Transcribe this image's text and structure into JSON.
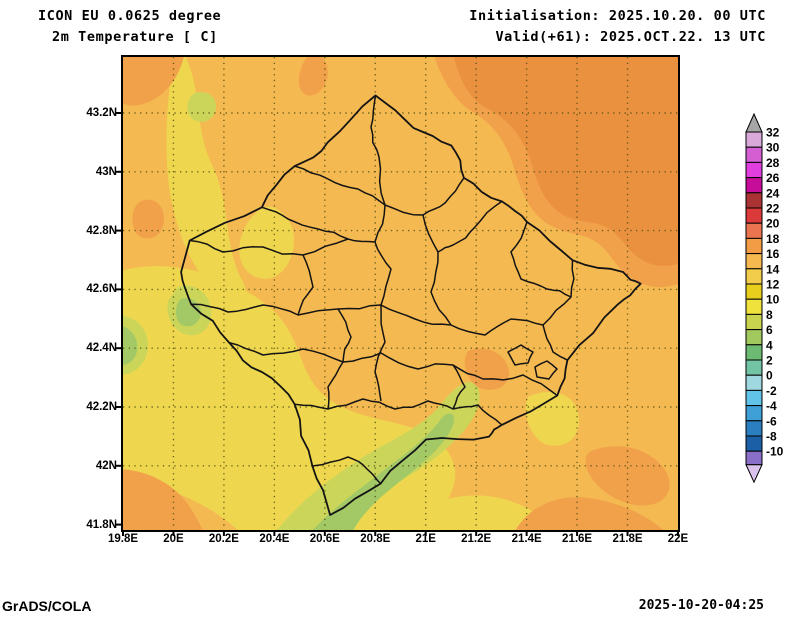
{
  "header": {
    "model_line": "ICON EU 0.0625 degree",
    "param_line": "2m Temperature [ C]",
    "init_line": "Initialisation: 2025.10.20. 00 UTC",
    "valid_line": "Valid(+61): 2025.OCT.22. 13 UTC"
  },
  "footer": {
    "credit": "GrADS/COLA",
    "timestamp": "2025-10-20-04:25"
  },
  "map": {
    "x_tick_labels": [
      "19.8E",
      "20E",
      "20.2E",
      "20.4E",
      "20.6E",
      "20.8E",
      "21E",
      "21.2E",
      "21.4E",
      "21.6E",
      "21.8E",
      "22E"
    ],
    "y_tick_labels": [
      "43.2N",
      "43N",
      "42.8N",
      "42.6N",
      "42.4N",
      "42.2N",
      "42N",
      "41.8N"
    ],
    "fill_colors": {
      "amber": "#f5b951",
      "yellow": "#eed74e",
      "yellow_green": "#cbd55a",
      "green": "#a3c967",
      "orange": "#f2a14b",
      "dark_orange": "#ea9140",
      "border": "#141414",
      "grid": "#4a4a10"
    }
  },
  "colorbar": {
    "unit": "C",
    "labels": [
      "32",
      "30",
      "28",
      "26",
      "24",
      "22",
      "20",
      "18",
      "16",
      "14",
      "12",
      "10",
      "8",
      "6",
      "4",
      "2",
      "0",
      "-2",
      "-4",
      "-6",
      "-8",
      "-10"
    ],
    "cell_colors": [
      "#d9a9d9",
      "#d45fd2",
      "#e03ede",
      "#c60d9a",
      "#ab3232",
      "#dc3a3a",
      "#ea7450",
      "#f29d46",
      "#f5b94f",
      "#f2cd4c",
      "#e8cf1d",
      "#efe23c",
      "#c8d44d",
      "#a2c95e",
      "#6dbb72",
      "#72c4a5",
      "#9fd8de",
      "#62c3e8",
      "#3fa0d8",
      "#2b7fc0",
      "#1b5fa6"
    ],
    "above_color": "#a6a6a6",
    "below_color": "#8a6fc8",
    "below_tip_color": "#d9c2ec"
  }
}
